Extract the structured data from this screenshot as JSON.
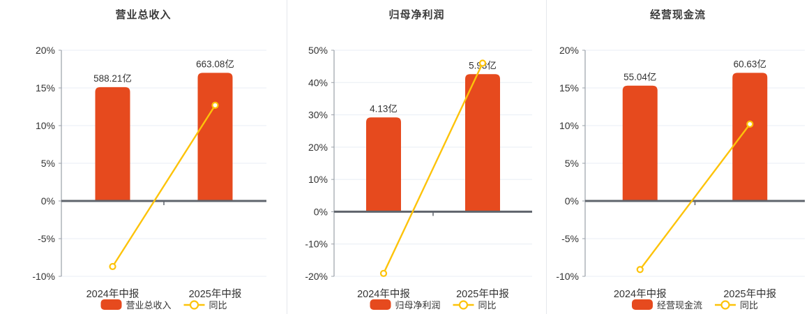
{
  "colors": {
    "bar": "#e64a1e",
    "line": "#fdc30a",
    "marker_fill": "#ffffff",
    "grid_line": "#e8edf4",
    "axis_line": "#9aa0a8",
    "zero_line": "#5f646c",
    "text": "#333333",
    "title_text": "#3a3a3a",
    "separator": "#e4e7ec",
    "background": "#ffffff"
  },
  "chart_data": [
    {
      "type": "bar+line",
      "title": "营业总收入",
      "categories": [
        "2024年中报",
        "2025年中报"
      ],
      "ylim": [
        -10,
        20
      ],
      "ytick_values": [
        20,
        15,
        10,
        5,
        0,
        -5,
        -10
      ],
      "ytick_labels": [
        "20%",
        "15%",
        "10%",
        "5%",
        "0%",
        "-5%",
        "-10%"
      ],
      "grid": true,
      "legend_position": "bottom",
      "bar_series": {
        "name": "营业总收入",
        "unit": "亿",
        "values": [
          588.21,
          663.08
        ],
        "value_labels": [
          "588.21亿",
          "663.08亿"
        ],
        "bar_top_pct": [
          15.1,
          17.0
        ]
      },
      "line_series": {
        "name": "同比",
        "values_pct": [
          -8.7,
          12.7
        ]
      }
    },
    {
      "type": "bar+line",
      "title": "归母净利润",
      "categories": [
        "2024年中报",
        "2025年中报"
      ],
      "ylim": [
        -20,
        50
      ],
      "ytick_values": [
        50,
        40,
        30,
        20,
        10,
        0,
        -10,
        -20
      ],
      "ytick_labels": [
        "50%",
        "40%",
        "30%",
        "20%",
        "10%",
        "0%",
        "-10%",
        "-20%"
      ],
      "grid": true,
      "legend_position": "bottom",
      "bar_series": {
        "name": "归母净利润",
        "unit": "亿",
        "values": [
          4.13,
          5.93
        ],
        "value_labels": [
          "4.13亿",
          "5.93亿"
        ],
        "bar_top_pct": [
          29.2,
          42.6
        ]
      },
      "line_series": {
        "name": "同比",
        "values_pct": [
          -19.1,
          46.0
        ]
      }
    },
    {
      "type": "bar+line",
      "title": "经营现金流",
      "categories": [
        "2024年中报",
        "2025年中报"
      ],
      "ylim": [
        -10,
        20
      ],
      "ytick_values": [
        20,
        15,
        10,
        5,
        0,
        -5,
        -10
      ],
      "ytick_labels": [
        "20%",
        "15%",
        "10%",
        "5%",
        "0%",
        "-5%",
        "-10%"
      ],
      "grid": true,
      "legend_position": "bottom",
      "bar_series": {
        "name": "经营现金流",
        "unit": "亿",
        "values": [
          55.04,
          60.63
        ],
        "value_labels": [
          "55.04亿",
          "60.63亿"
        ],
        "bar_top_pct": [
          15.3,
          17.0
        ]
      },
      "line_series": {
        "name": "同比",
        "values_pct": [
          -9.1,
          10.2
        ]
      }
    }
  ]
}
